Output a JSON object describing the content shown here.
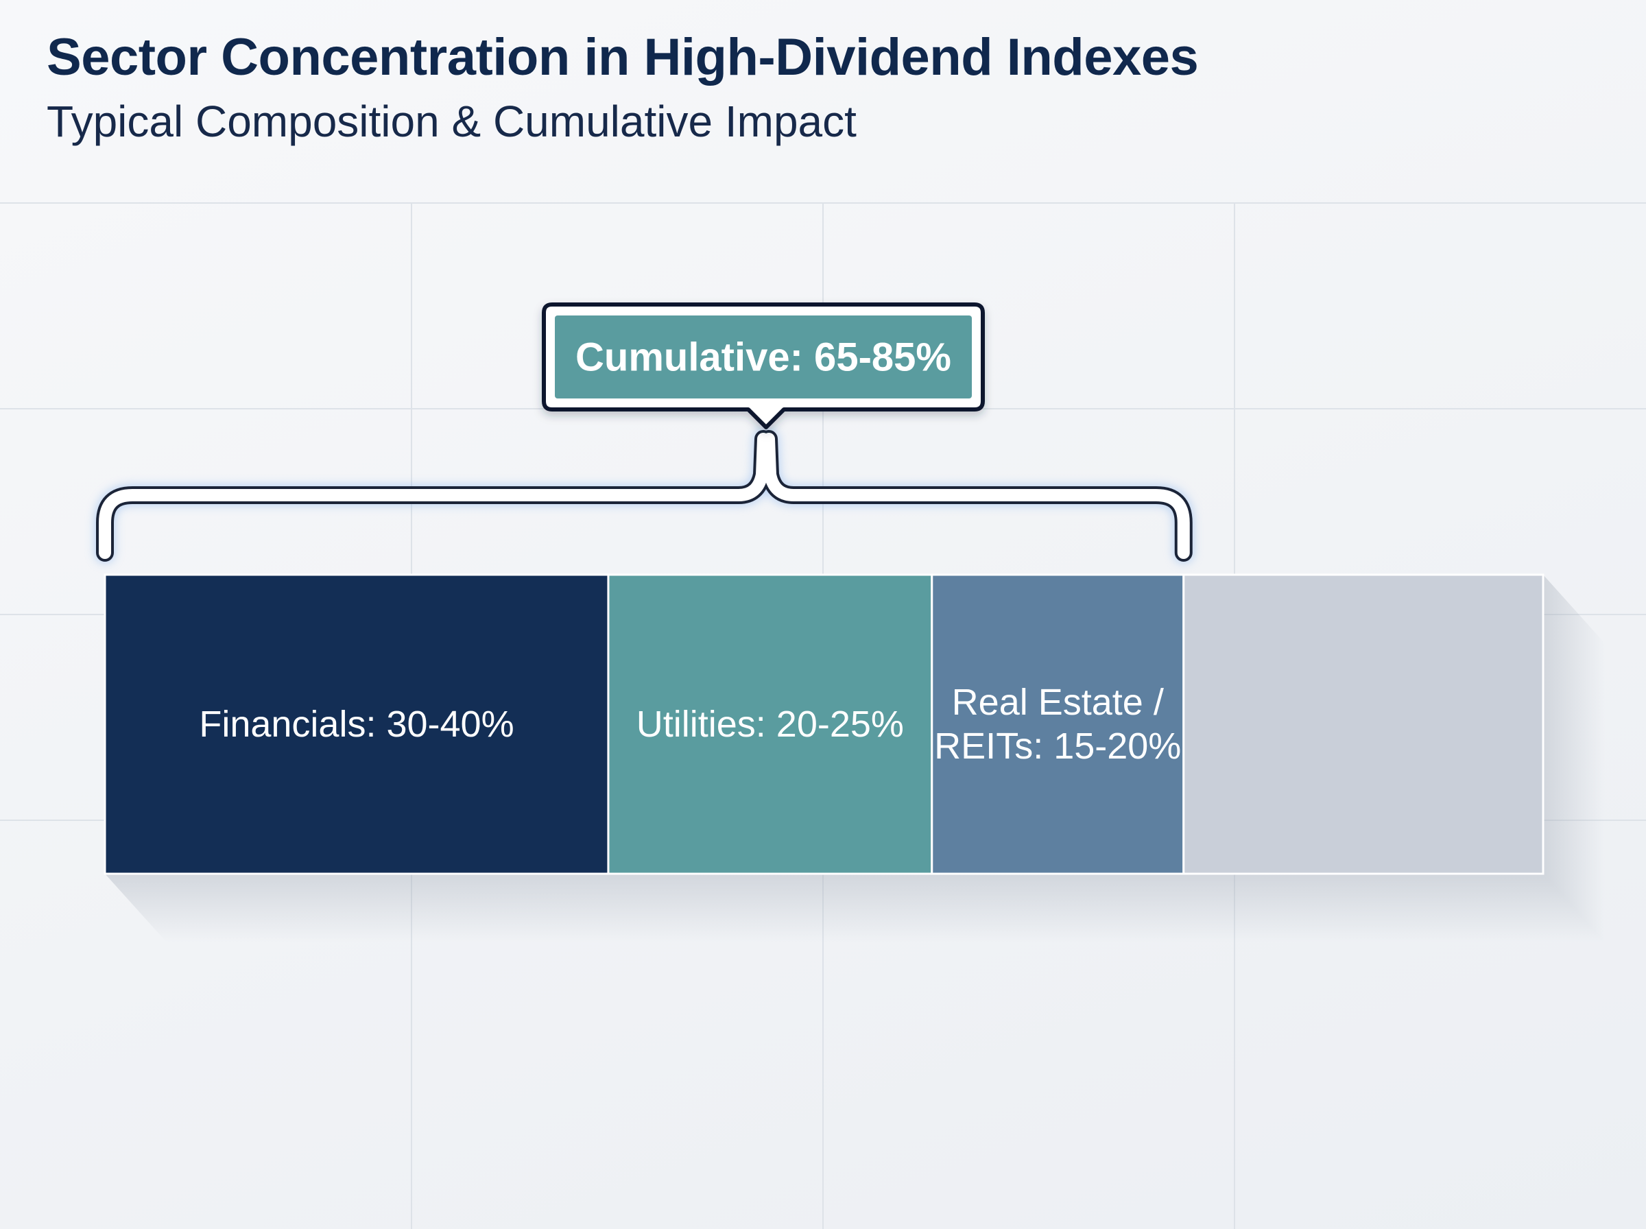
{
  "title": "Sector Concentration in High-Dividend Indexes",
  "subtitle": "Typical Composition & Cumulative Impact",
  "chart_data": {
    "type": "bar",
    "orientation": "horizontal-stacked",
    "title": "Sector Concentration in High-Dividend Indexes",
    "subtitle": "Typical Composition & Cumulative Impact",
    "unit": "%",
    "segments": [
      {
        "label": "Financials: 30-40%",
        "low": 30,
        "high": 40,
        "color": "#132e55"
      },
      {
        "label": "Utilities: 20-25%",
        "low": 20,
        "high": 25,
        "color": "#5a9c9f"
      },
      {
        "label": "Real Estate / REITs: 15-20%",
        "low": 15,
        "high": 20,
        "color": "#5e80a0",
        "label_lines": [
          "Real Estate /",
          "REITs: 15-20%"
        ]
      },
      {
        "label": "",
        "color": "#c9cfd9"
      }
    ],
    "annotation": {
      "text": "Cumulative: 65-85%",
      "low": 65,
      "high": 85,
      "spans": [
        "Financials",
        "Utilities",
        "Real Estate / REITs"
      ],
      "color": "#5a9c9f"
    },
    "grid": true,
    "legend": "none"
  }
}
